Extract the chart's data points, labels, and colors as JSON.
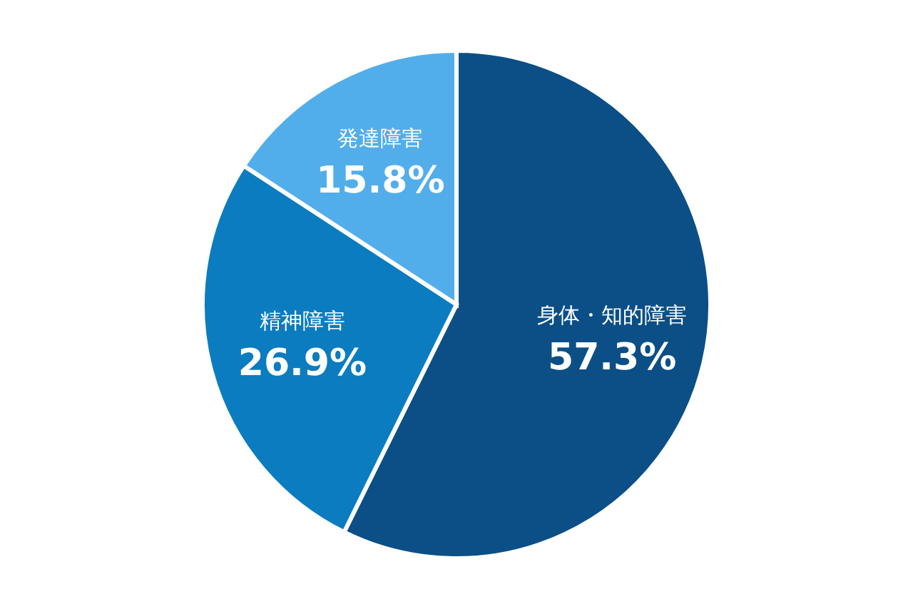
{
  "chart_data": {
    "type": "pie",
    "categories": [
      "身体・知的障害",
      "精神障害",
      "発達障害"
    ],
    "values": [
      57.3,
      26.9,
      15.8
    ],
    "value_labels": [
      "57.3%",
      "26.9%",
      "15.8%"
    ],
    "colors": [
      "#0b4f86",
      "#0b7cc0",
      "#52aeea"
    ],
    "legend": false
  }
}
